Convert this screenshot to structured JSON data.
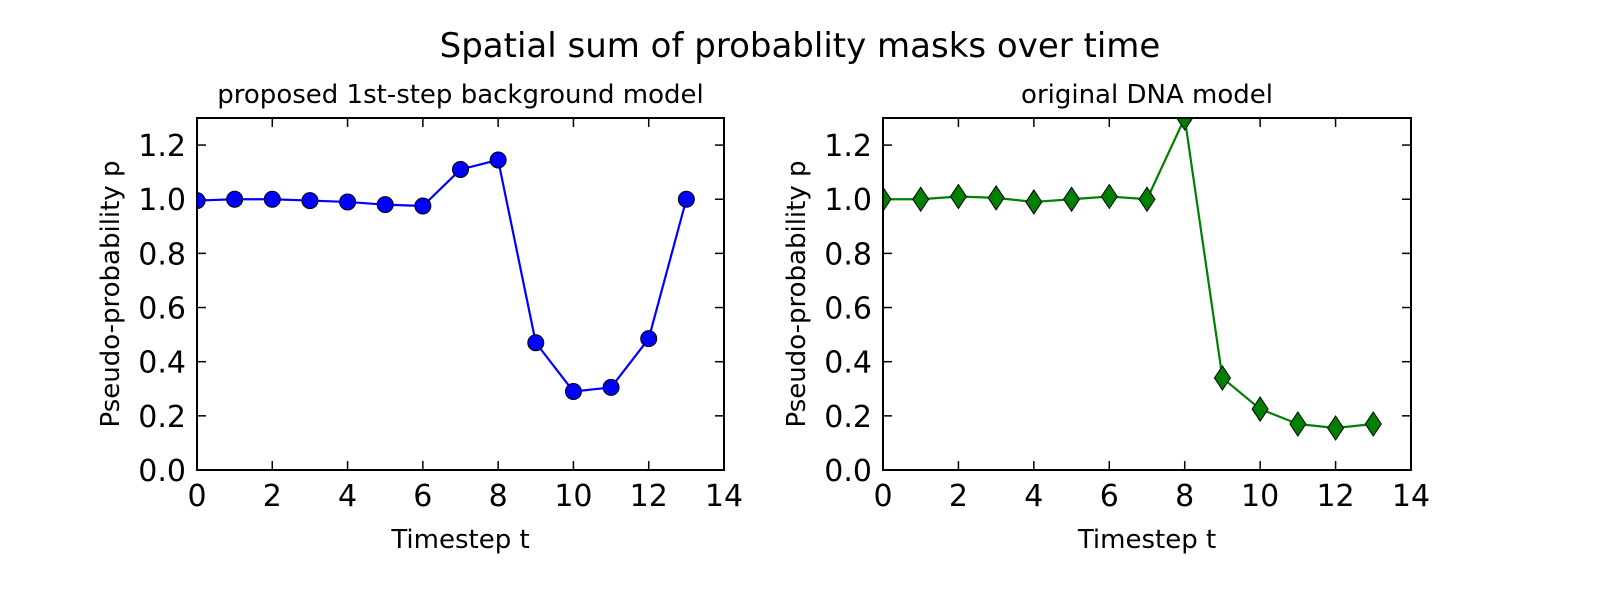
{
  "figure": {
    "suptitle": "Spatial sum of probablity masks over time"
  },
  "chart_data": [
    {
      "type": "line",
      "title": "proposed 1st-step background model",
      "xlabel": "Timestep t",
      "ylabel": "Pseudo-probability p",
      "xlim": [
        0,
        14
      ],
      "ylim": [
        0,
        1.3
      ],
      "xticks": [
        0,
        2,
        4,
        6,
        8,
        10,
        12,
        14
      ],
      "yticks": [
        0.0,
        0.2,
        0.4,
        0.6,
        0.8,
        1.0,
        1.2
      ],
      "xtick_labels": [
        "0",
        "2",
        "4",
        "6",
        "8",
        "10",
        "12",
        "14"
      ],
      "ytick_labels": [
        "0.0",
        "0.2",
        "0.4",
        "0.6",
        "0.8",
        "1.0",
        "1.2"
      ],
      "grid": false,
      "series": [
        {
          "color": "#0000ff",
          "marker": "circle",
          "x": [
            0,
            1,
            2,
            3,
            4,
            5,
            6,
            7,
            8,
            9,
            10,
            11,
            12,
            13
          ],
          "y": [
            0.995,
            1.0,
            1.0,
            0.995,
            0.99,
            0.98,
            0.975,
            1.11,
            1.145,
            0.47,
            0.29,
            0.305,
            0.485,
            1.0
          ]
        }
      ]
    },
    {
      "type": "line",
      "title": "original DNA model",
      "xlabel": "Timestep t",
      "ylabel": "Pseudo-probability p",
      "xlim": [
        0,
        14
      ],
      "ylim": [
        0,
        1.3
      ],
      "xticks": [
        0,
        2,
        4,
        6,
        8,
        10,
        12,
        14
      ],
      "yticks": [
        0.0,
        0.2,
        0.4,
        0.6,
        0.8,
        1.0,
        1.2
      ],
      "xtick_labels": [
        "0",
        "2",
        "4",
        "6",
        "8",
        "10",
        "12",
        "14"
      ],
      "ytick_labels": [
        "0.0",
        "0.2",
        "0.4",
        "0.6",
        "0.8",
        "1.0",
        "1.2"
      ],
      "grid": false,
      "series": [
        {
          "color": "#008000",
          "marker": "diamond",
          "x": [
            0,
            1,
            2,
            3,
            4,
            5,
            6,
            7,
            8,
            9,
            10,
            11,
            12,
            13
          ],
          "y": [
            1.0,
            1.0,
            1.01,
            1.005,
            0.99,
            1.0,
            1.01,
            1.0,
            1.3,
            0.34,
            0.225,
            0.17,
            0.155,
            0.17
          ]
        }
      ]
    }
  ]
}
